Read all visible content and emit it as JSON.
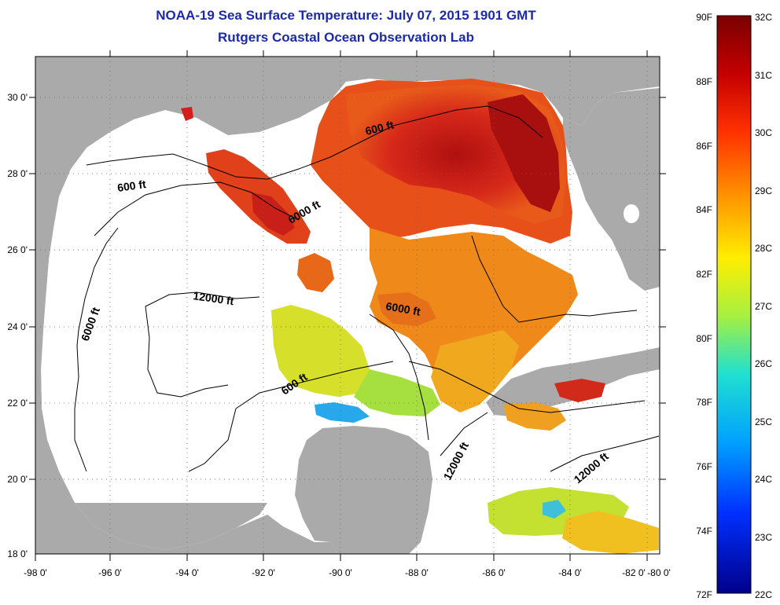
{
  "header": {
    "title": "NOAA-19 Sea Surface Temperature:  July 07, 2015 1901 GMT",
    "subtitle": "Rutgers Coastal Ocean Observation Lab"
  },
  "map": {
    "lon_labels": [
      "-98 0'",
      "-96 0'",
      "-94 0'",
      "-92 0'",
      "-90 0'",
      "-88 0'",
      "-86 0'",
      "-84 0'",
      "-82 0'",
      "-80 0'"
    ],
    "lat_labels": [
      "30 0'",
      "28 0'",
      "26 0'",
      "24 0'",
      "22 0'",
      "20 0'",
      "18 0'"
    ],
    "contour_labels": [
      "600 ft",
      "6000 ft",
      "600 ft",
      "12000 ft",
      "6000 ft",
      "6000 ft",
      "600 ft",
      "12000 ft",
      "12000 ft"
    ],
    "colors": {
      "land": "#aaaaaa",
      "ocean_no_data": "#ffffff"
    }
  },
  "colorbar": {
    "fahrenheit_labels": [
      "90F",
      "88F",
      "86F",
      "84F",
      "82F",
      "80F",
      "78F",
      "76F",
      "74F",
      "72F"
    ],
    "celsius_labels": [
      "32C",
      "31C",
      "30C",
      "29C",
      "28C",
      "27C",
      "26C",
      "25C",
      "24C",
      "23C",
      "22C"
    ],
    "range_f": [
      72,
      90
    ],
    "range_c": [
      22,
      32
    ]
  }
}
